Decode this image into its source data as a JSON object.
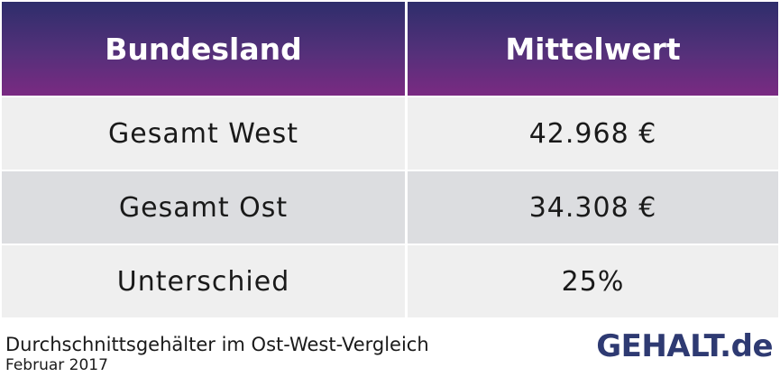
{
  "chart_data": {
    "type": "table",
    "columns": [
      "Bundesland",
      "Mittelwert"
    ],
    "rows": [
      {
        "label": "Gesamt West",
        "value": "42.968 €"
      },
      {
        "label": "Gesamt Ost",
        "value": "34.308 €"
      },
      {
        "label": "Unterschied",
        "value": "25%"
      }
    ],
    "caption": "Durchschnittsgehälter im Ost-West-Vergleich",
    "date": "Februar 2017"
  },
  "branding": {
    "logo_text": "GEHALT.de"
  },
  "colors": {
    "header_top": "#2e2e6b",
    "header_bottom": "#7a2a82",
    "row_light": "#efefef",
    "row_dark": "#dcdde0",
    "logo": "#2e3a72"
  }
}
